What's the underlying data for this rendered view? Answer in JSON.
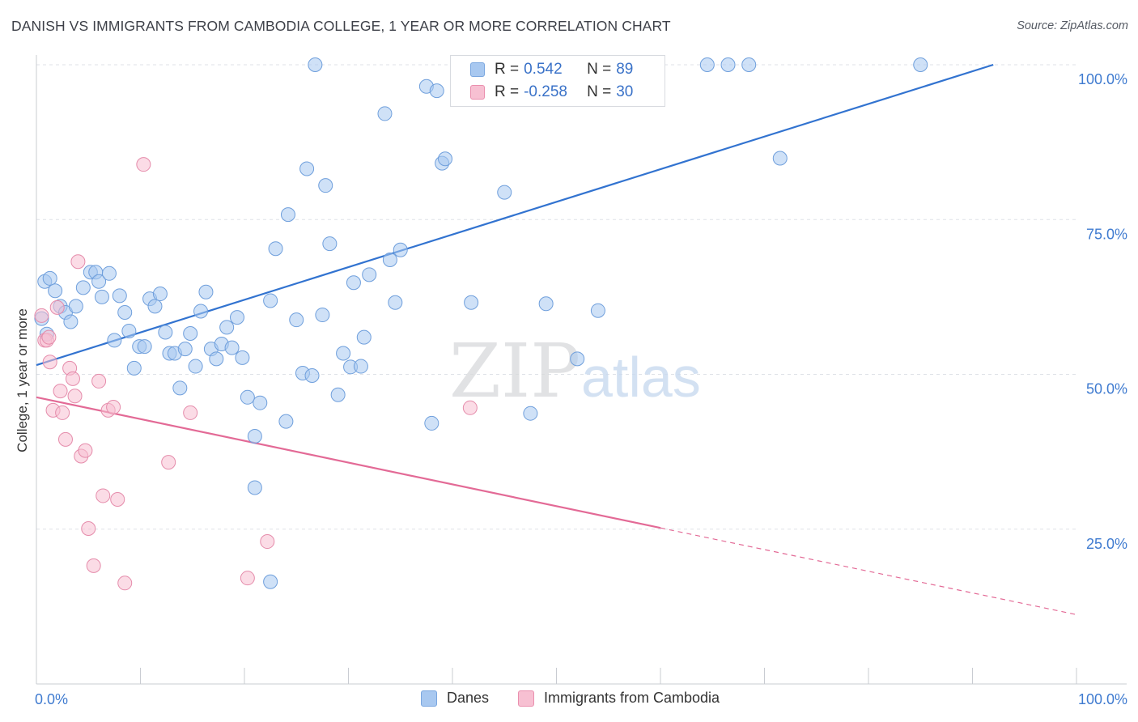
{
  "title": "DANISH VS IMMIGRANTS FROM CAMBODIA COLLEGE, 1 YEAR OR MORE CORRELATION CHART",
  "source": "Source: ZipAtlas.com",
  "watermark": {
    "zip": "ZIP",
    "atlas": "atlas"
  },
  "legend_box": {
    "r_label": "R =",
    "n_label": "N =",
    "rows": [
      {
        "r": "0.542",
        "n": "89",
        "color": "#a8c8f0",
        "border": "#7aa7e0"
      },
      {
        "r": "-0.258",
        "n": "30",
        "color": "#f7c0d2",
        "border": "#ea8fae"
      }
    ]
  },
  "chart_data": {
    "type": "scatter",
    "title": "DANISH VS IMMIGRANTS FROM CAMBODIA COLLEGE, 1 YEAR OR MORE CORRELATION CHART",
    "xlabel": "",
    "ylabel": "College, 1 year or more",
    "xlim": [
      0,
      100
    ],
    "ylim": [
      0,
      100
    ],
    "x_ticks": [
      "0.0%",
      "100.0%"
    ],
    "y_ticks": [
      "25.0%",
      "50.0%",
      "75.0%",
      "100.0%"
    ],
    "grid": true,
    "legend_position": "bottom",
    "series": [
      {
        "name": "Danes",
        "color": "#a8c8f0",
        "edge": "#6f9fdc",
        "line_color": "#3273d0",
        "trend": {
          "x0": 0,
          "y0": 51.5,
          "x1": 92,
          "y1": 100
        },
        "points": [
          [
            0.5,
            59
          ],
          [
            0.8,
            65
          ],
          [
            1.3,
            65.5
          ],
          [
            1.8,
            63.5
          ],
          [
            2.3,
            61
          ],
          [
            2.8,
            60
          ],
          [
            3.3,
            58.5
          ],
          [
            3.8,
            61
          ],
          [
            4.5,
            64
          ],
          [
            5.2,
            66.5
          ],
          [
            5.7,
            66.5
          ],
          [
            6.0,
            65
          ],
          [
            6.3,
            62.5
          ],
          [
            7.0,
            66.3
          ],
          [
            7.5,
            55.5
          ],
          [
            8.0,
            62.7
          ],
          [
            8.5,
            60
          ],
          [
            8.9,
            57
          ],
          [
            9.4,
            51
          ],
          [
            9.9,
            54.5
          ],
          [
            10.4,
            54.5
          ],
          [
            10.9,
            62.2
          ],
          [
            11.4,
            61
          ],
          [
            11.9,
            63
          ],
          [
            12.4,
            56.8
          ],
          [
            12.8,
            53.4
          ],
          [
            13.3,
            53.4
          ],
          [
            13.8,
            47.8
          ],
          [
            14.3,
            54.1
          ],
          [
            14.8,
            56.6
          ],
          [
            15.3,
            51.3
          ],
          [
            15.8,
            60.2
          ],
          [
            16.3,
            63.3
          ],
          [
            16.8,
            54.1
          ],
          [
            17.3,
            52.5
          ],
          [
            17.8,
            54.9
          ],
          [
            18.3,
            57.6
          ],
          [
            18.8,
            54.3
          ],
          [
            19.3,
            59.2
          ],
          [
            19.8,
            52.7
          ],
          [
            20.3,
            46.3
          ],
          [
            21.0,
            40
          ],
          [
            21.5,
            45.4
          ],
          [
            21.0,
            31.7
          ],
          [
            22.5,
            16.5
          ],
          [
            22.5,
            61.9
          ],
          [
            23.0,
            70.3
          ],
          [
            24.0,
            42.4
          ],
          [
            24.2,
            75.8
          ],
          [
            25.0,
            58.8
          ],
          [
            25.6,
            50.2
          ],
          [
            26.0,
            83.2
          ],
          [
            26.5,
            49.8
          ],
          [
            26.8,
            100
          ],
          [
            27.5,
            59.6
          ],
          [
            27.8,
            80.5
          ],
          [
            28.2,
            71.1
          ],
          [
            29.0,
            46.7
          ],
          [
            29.5,
            53.4
          ],
          [
            30.2,
            51.2
          ],
          [
            30.5,
            64.8
          ],
          [
            31.2,
            51.3
          ],
          [
            31.5,
            56
          ],
          [
            32.0,
            66.1
          ],
          [
            33.5,
            92.1
          ],
          [
            34.0,
            68.5
          ],
          [
            34.5,
            61.6
          ],
          [
            35.0,
            70.1
          ],
          [
            37.5,
            96.5
          ],
          [
            38.0,
            42.1
          ],
          [
            38.5,
            95.8
          ],
          [
            39.0,
            84.1
          ],
          [
            39.3,
            84.8
          ],
          [
            41.5,
            100
          ],
          [
            41.8,
            61.6
          ],
          [
            44.0,
            100
          ],
          [
            45.0,
            79.4
          ],
          [
            47.5,
            43.7
          ],
          [
            49.0,
            61.4
          ],
          [
            52.0,
            52.5
          ],
          [
            54.0,
            60.3
          ],
          [
            58.0,
            100
          ],
          [
            64.5,
            100
          ],
          [
            66.5,
            100
          ],
          [
            68.5,
            100
          ],
          [
            71.5,
            84.9
          ],
          [
            85.0,
            100
          ],
          [
            1.0,
            56.5
          ]
        ]
      },
      {
        "name": "Immigrants from Cambodia",
        "color": "#f7c0d2",
        "edge": "#e58cab",
        "line_color": "#e36a96",
        "trend": {
          "x0": 0,
          "y0": 46.3,
          "x1": 60,
          "y1": 25.2
        },
        "trend_dashed_to": {
          "x": 100,
          "y": 11.2
        },
        "points": [
          [
            0.5,
            59.5
          ],
          [
            0.8,
            55.5
          ],
          [
            1.0,
            55.5
          ],
          [
            1.3,
            52
          ],
          [
            1.6,
            44.2
          ],
          [
            2.0,
            60.8
          ],
          [
            2.3,
            47.3
          ],
          [
            2.5,
            43.8
          ],
          [
            2.8,
            39.5
          ],
          [
            3.2,
            51
          ],
          [
            3.5,
            49.3
          ],
          [
            3.7,
            46.5
          ],
          [
            4.0,
            68.2
          ],
          [
            4.3,
            36.8
          ],
          [
            4.7,
            37.7
          ],
          [
            5.0,
            25.1
          ],
          [
            5.5,
            19.1
          ],
          [
            6.0,
            48.9
          ],
          [
            6.4,
            30.4
          ],
          [
            6.9,
            44.2
          ],
          [
            7.4,
            44.7
          ],
          [
            7.8,
            29.8
          ],
          [
            8.5,
            16.3
          ],
          [
            10.3,
            83.9
          ],
          [
            12.7,
            35.8
          ],
          [
            14.8,
            43.8
          ],
          [
            20.3,
            17.1
          ],
          [
            22.2,
            23
          ],
          [
            41.7,
            44.6
          ],
          [
            1.2,
            56
          ]
        ]
      }
    ]
  },
  "bottom_legend": [
    {
      "label": "Danes",
      "color": "#a8c8f0",
      "border": "#7aa7e0"
    },
    {
      "label": "Immigrants from Cambodia",
      "color": "#f7c0d2",
      "border": "#ea8fae"
    }
  ]
}
